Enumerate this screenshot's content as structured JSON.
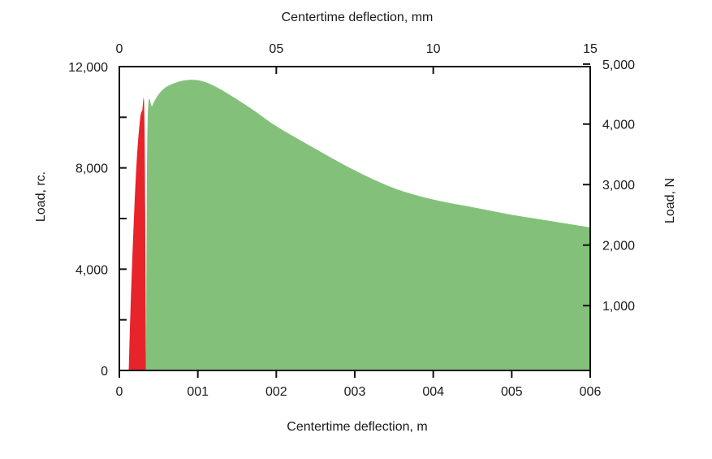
{
  "chart_data": {
    "type": "area",
    "title": "",
    "xlabel_bottom": "Centertime deflection, m",
    "xlabel_top": "Centertime deflection, mm",
    "ylabel_left": "Load, rc.",
    "ylabel_right": "Load, N",
    "xlim": [
      0,
      0.06
    ],
    "ylim": [
      0,
      12000
    ],
    "x_ticks_bottom": [
      {
        "value": 0,
        "label": "0"
      },
      {
        "value": 0.01,
        "label": "001"
      },
      {
        "value": 0.02,
        "label": "002"
      },
      {
        "value": 0.03,
        "label": "003"
      },
      {
        "value": 0.04,
        "label": "004"
      },
      {
        "value": 0.05,
        "label": "005"
      },
      {
        "value": 0.06,
        "label": "006"
      }
    ],
    "x_ticks_top": [
      {
        "value": 0,
        "label": "0"
      },
      {
        "value": 0.02,
        "label": "05"
      },
      {
        "value": 0.04,
        "label": "10"
      },
      {
        "value": 0.06,
        "label": "15"
      }
    ],
    "y_ticks_left": [
      {
        "value": 0,
        "label": "0"
      },
      {
        "value": 2000,
        "label": ""
      },
      {
        "value": 4000,
        "label": "4,000"
      },
      {
        "value": 6000,
        "label": ""
      },
      {
        "value": 8000,
        "label": "8,000"
      },
      {
        "value": 10000,
        "label": ""
      },
      {
        "value": 12000,
        "label": "12,000"
      }
    ],
    "y_ticks_right": [
      {
        "value": 2560,
        "label": "1,000"
      },
      {
        "value": 4950,
        "label": "2,000"
      },
      {
        "value": 7340,
        "label": "3,000"
      },
      {
        "value": 9730,
        "label": "4,000"
      },
      {
        "value": 12100,
        "label": "5,000"
      }
    ],
    "series": [
      {
        "color": "#83c17a",
        "x": [
          0.0034,
          0.0036,
          0.0042,
          0.005,
          0.006,
          0.0075,
          0.009,
          0.0105,
          0.012,
          0.014,
          0.017,
          0.02,
          0.025,
          0.03,
          0.035,
          0.04,
          0.045,
          0.05,
          0.055,
          0.06
        ],
        "y": [
          0,
          9800,
          10450,
          10900,
          11200,
          11400,
          11480,
          11430,
          11250,
          10900,
          10300,
          9650,
          8750,
          7900,
          7200,
          6750,
          6450,
          6150,
          5900,
          5650
        ]
      },
      {
        "color": "#e8242b",
        "x": [
          0.0012,
          0.0014,
          0.0018,
          0.0022,
          0.0026,
          0.0029,
          0.0032,
          0.0034
        ],
        "y": [
          0,
          2200,
          5600,
          8200,
          9800,
          10250,
          9900,
          0
        ]
      }
    ]
  }
}
